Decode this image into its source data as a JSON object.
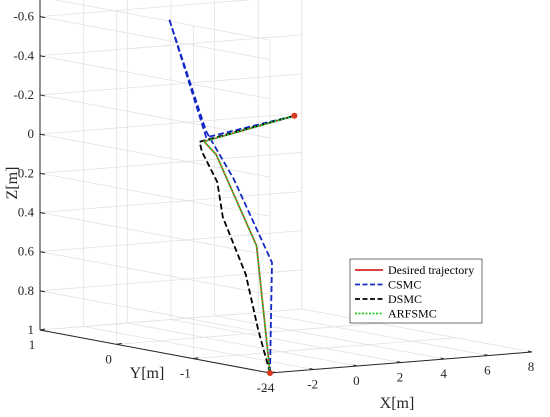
{
  "chart_data": {
    "type": "line3d",
    "title": "",
    "xlabel": "X[m]",
    "ylabel": "Y[m]",
    "zlabel": "Z[m]",
    "z_axis_reversed": true,
    "xlim": [
      -4,
      8
    ],
    "ylim": [
      -2,
      1
    ],
    "zlim": [
      -0.7,
      1
    ],
    "x_ticks": [
      "-4",
      "-2",
      "0",
      "2",
      "4",
      "6",
      "8"
    ],
    "y_ticks": [
      "-2",
      "-1",
      "0",
      "1"
    ],
    "z_ticks": [
      "-0.6",
      "-0.4",
      "-0.2",
      "0",
      "0.2",
      "0.4",
      "0.6",
      "0.8",
      "1"
    ],
    "grid": true,
    "legend_position": "bottom-right",
    "markers": [
      {
        "label": "start",
        "color": "#d93a1c",
        "x": -4,
        "y": -2,
        "z": 1
      },
      {
        "label": "end",
        "color": "#d93a1c",
        "x": 7.3,
        "y": 0.9,
        "z": 0
      }
    ],
    "series": [
      {
        "name": "Desired trajectory",
        "color": "#d62728",
        "style": "solid",
        "points": [
          [
            -4,
            -2,
            1
          ],
          [
            -1.1,
            -1,
            0.45
          ],
          [
            -0.15,
            -0.2,
            0.05
          ],
          [
            0,
            0,
            0
          ],
          [
            7.3,
            0.9,
            0
          ]
        ]
      },
      {
        "name": "CSMC",
        "color": "#1428c8",
        "style": "dashed",
        "points": [
          [
            -4,
            -2,
            1
          ],
          [
            -1.8,
            -1.4,
            0.5
          ],
          [
            -0.4,
            -0.5,
            0.15
          ],
          [
            0.1,
            0,
            -0.05
          ],
          [
            -0.2,
            0.4,
            -0.6
          ],
          [
            0.1,
            0,
            -0.02
          ],
          [
            7.3,
            0.9,
            0
          ]
        ]
      },
      {
        "name": "DSMC",
        "color": "#000000",
        "style": "dashed",
        "points": [
          [
            -4,
            -2,
            1
          ],
          [
            -3.5,
            -1.7,
            0.8
          ],
          [
            -3.0,
            -1.4,
            0.55
          ],
          [
            -2.3,
            -0.9,
            0.3
          ],
          [
            -1.5,
            -0.6,
            0.15
          ],
          [
            -0.8,
            -0.2,
            0.03
          ],
          [
            -0.2,
            0,
            0
          ],
          [
            7.3,
            0.9,
            0
          ]
        ]
      },
      {
        "name": "ARFSMC",
        "color": "#22cc22",
        "style": "dotted",
        "points": [
          [
            -4,
            -2,
            1
          ],
          [
            -1.1,
            -1,
            0.45
          ],
          [
            -0.15,
            -0.2,
            0.05
          ],
          [
            0,
            0,
            0
          ],
          [
            7.3,
            0.9,
            0
          ]
        ]
      }
    ]
  }
}
